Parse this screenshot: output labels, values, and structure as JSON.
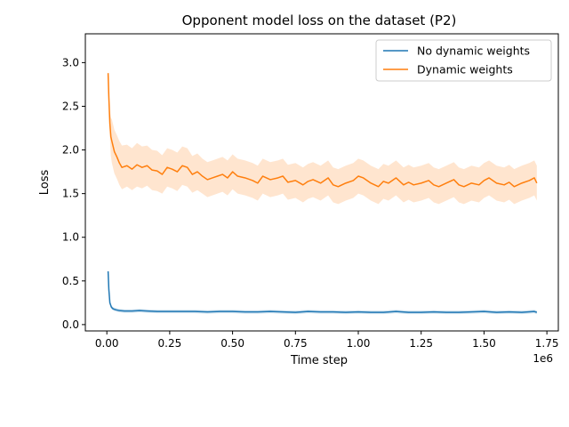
{
  "chart_data": {
    "type": "line",
    "title": "Opponent model loss on the dataset (P2)",
    "xlabel": "Time step",
    "ylabel": "Loss",
    "x_offset_label": "1e6",
    "xlim": [
      -0.0855,
      1.7955
    ],
    "ylim": [
      -0.0725,
      3.33
    ],
    "x_ticks": [
      {
        "value": 0.0,
        "label": "0.00"
      },
      {
        "value": 0.25,
        "label": "0.25"
      },
      {
        "value": 0.5,
        "label": "0.50"
      },
      {
        "value": 0.75,
        "label": "0.75"
      },
      {
        "value": 1.0,
        "label": "1.00"
      },
      {
        "value": 1.25,
        "label": "1.25"
      },
      {
        "value": 1.5,
        "label": "1.50"
      },
      {
        "value": 1.75,
        "label": "1.75"
      }
    ],
    "y_ticks": [
      {
        "value": 0.0,
        "label": "0.0"
      },
      {
        "value": 0.5,
        "label": "0.5"
      },
      {
        "value": 1.0,
        "label": "1.0"
      },
      {
        "value": 1.5,
        "label": "1.5"
      },
      {
        "value": 2.0,
        "label": "2.0"
      },
      {
        "value": 2.5,
        "label": "2.5"
      },
      {
        "value": 3.0,
        "label": "3.0"
      }
    ],
    "grid": false,
    "legend_position": "top-right",
    "series": [
      {
        "name": "No dynamic weights",
        "color": "#1f77b4",
        "x": [
          0.005,
          0.008,
          0.012,
          0.018,
          0.025,
          0.035,
          0.05,
          0.07,
          0.1,
          0.13,
          0.16,
          0.2,
          0.25,
          0.3,
          0.35,
          0.4,
          0.45,
          0.5,
          0.55,
          0.6,
          0.65,
          0.7,
          0.75,
          0.8,
          0.85,
          0.9,
          0.95,
          1.0,
          1.05,
          1.1,
          1.15,
          1.2,
          1.25,
          1.3,
          1.35,
          1.4,
          1.45,
          1.5,
          1.55,
          1.6,
          1.65,
          1.7,
          1.71
        ],
        "y": [
          0.61,
          0.4,
          0.25,
          0.2,
          0.18,
          0.17,
          0.16,
          0.155,
          0.155,
          0.16,
          0.155,
          0.15,
          0.15,
          0.15,
          0.15,
          0.145,
          0.15,
          0.15,
          0.145,
          0.145,
          0.15,
          0.145,
          0.14,
          0.15,
          0.145,
          0.145,
          0.14,
          0.145,
          0.14,
          0.14,
          0.15,
          0.14,
          0.14,
          0.145,
          0.14,
          0.14,
          0.145,
          0.15,
          0.14,
          0.145,
          0.14,
          0.15,
          0.14
        ],
        "band": [
          0.0,
          0.0,
          0.02,
          0.02,
          0.02,
          0.02,
          0.02,
          0.02,
          0.02,
          0.02,
          0.02,
          0.02,
          0.02,
          0.02,
          0.02,
          0.02,
          0.02,
          0.02,
          0.02,
          0.02,
          0.02,
          0.02,
          0.02,
          0.02,
          0.02,
          0.02,
          0.02,
          0.02,
          0.02,
          0.02,
          0.02,
          0.02,
          0.02,
          0.02,
          0.02,
          0.02,
          0.02,
          0.02,
          0.02,
          0.02,
          0.02,
          0.02,
          0.02
        ]
      },
      {
        "name": "Dynamic weights",
        "color": "#ff7f0e",
        "x": [
          0.005,
          0.008,
          0.012,
          0.016,
          0.02,
          0.03,
          0.04,
          0.05,
          0.06,
          0.08,
          0.1,
          0.12,
          0.14,
          0.16,
          0.18,
          0.2,
          0.22,
          0.24,
          0.26,
          0.28,
          0.3,
          0.32,
          0.34,
          0.36,
          0.38,
          0.4,
          0.42,
          0.44,
          0.46,
          0.48,
          0.5,
          0.52,
          0.55,
          0.58,
          0.6,
          0.62,
          0.65,
          0.68,
          0.7,
          0.72,
          0.75,
          0.78,
          0.8,
          0.82,
          0.85,
          0.88,
          0.9,
          0.92,
          0.95,
          0.98,
          1.0,
          1.02,
          1.05,
          1.08,
          1.1,
          1.12,
          1.15,
          1.18,
          1.2,
          1.22,
          1.25,
          1.28,
          1.3,
          1.32,
          1.35,
          1.38,
          1.4,
          1.42,
          1.45,
          1.48,
          1.5,
          1.52,
          1.55,
          1.58,
          1.6,
          1.62,
          1.65,
          1.68,
          1.7,
          1.71
        ],
        "y": [
          2.88,
          2.6,
          2.3,
          2.15,
          2.1,
          1.98,
          1.92,
          1.85,
          1.8,
          1.82,
          1.78,
          1.83,
          1.8,
          1.82,
          1.77,
          1.76,
          1.72,
          1.8,
          1.78,
          1.75,
          1.82,
          1.8,
          1.72,
          1.75,
          1.7,
          1.66,
          1.68,
          1.7,
          1.72,
          1.68,
          1.75,
          1.7,
          1.68,
          1.65,
          1.62,
          1.7,
          1.66,
          1.68,
          1.7,
          1.63,
          1.65,
          1.6,
          1.64,
          1.66,
          1.62,
          1.68,
          1.6,
          1.58,
          1.62,
          1.65,
          1.7,
          1.68,
          1.62,
          1.58,
          1.64,
          1.62,
          1.68,
          1.6,
          1.63,
          1.6,
          1.62,
          1.65,
          1.6,
          1.58,
          1.62,
          1.66,
          1.6,
          1.58,
          1.62,
          1.6,
          1.65,
          1.68,
          1.62,
          1.6,
          1.63,
          1.58,
          1.62,
          1.65,
          1.68,
          1.62
        ],
        "band": [
          0.0,
          0.0,
          0.15,
          0.22,
          0.25,
          0.25,
          0.25,
          0.25,
          0.25,
          0.24,
          0.24,
          0.25,
          0.24,
          0.23,
          0.23,
          0.23,
          0.22,
          0.22,
          0.22,
          0.22,
          0.22,
          0.22,
          0.21,
          0.21,
          0.2,
          0.2,
          0.2,
          0.2,
          0.2,
          0.2,
          0.2,
          0.2,
          0.2,
          0.2,
          0.2,
          0.2,
          0.2,
          0.2,
          0.2,
          0.2,
          0.2,
          0.2,
          0.2,
          0.2,
          0.2,
          0.2,
          0.2,
          0.2,
          0.2,
          0.2,
          0.2,
          0.2,
          0.2,
          0.2,
          0.2,
          0.2,
          0.2,
          0.2,
          0.2,
          0.2,
          0.2,
          0.2,
          0.2,
          0.2,
          0.2,
          0.2,
          0.2,
          0.2,
          0.2,
          0.2,
          0.2,
          0.2,
          0.2,
          0.2,
          0.2,
          0.2,
          0.2,
          0.2,
          0.2,
          0.2
        ]
      }
    ]
  }
}
